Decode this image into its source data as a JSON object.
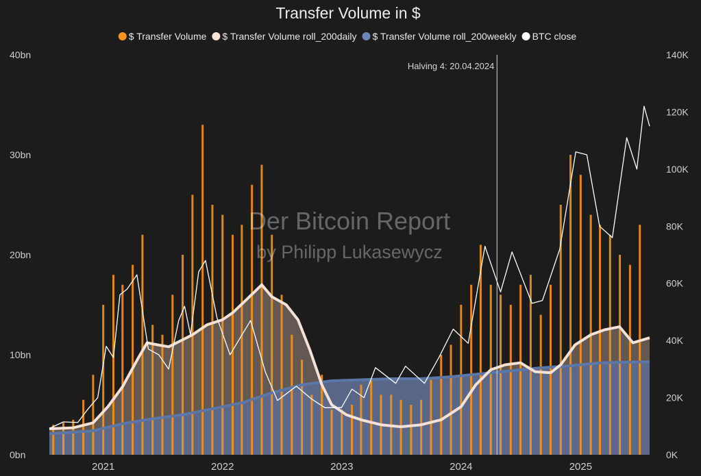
{
  "chart_data": {
    "type": "line",
    "title": "Transfer Volume in $",
    "xlabel": "",
    "ylabel_left": "",
    "ylabel_right": "",
    "background": "#1c1c1c",
    "watermark": {
      "line1": "Der Bitcoin Report",
      "line2": "by Philipp Lukasewycz"
    },
    "x_range": [
      "2020-07-20",
      "2025-07-31"
    ],
    "x_ticks": [
      {
        "date": "2021-01-01",
        "label": "2021"
      },
      {
        "date": "2022-01-01",
        "label": "2022"
      },
      {
        "date": "2023-01-01",
        "label": "2023"
      },
      {
        "date": "2024-01-01",
        "label": "2024"
      },
      {
        "date": "2025-01-01",
        "label": "2025"
      }
    ],
    "y_left": {
      "min": 0,
      "max": 40,
      "unit": "bn",
      "ticks": [
        {
          "v": 0,
          "label": "0bn"
        },
        {
          "v": 10,
          "label": "10bn"
        },
        {
          "v": 20,
          "label": "20bn"
        },
        {
          "v": 30,
          "label": "30bn"
        },
        {
          "v": 40,
          "label": "40bn"
        }
      ]
    },
    "y_right": {
      "min": 0,
      "max": 140000,
      "ticks": [
        {
          "v": 0,
          "label": "0K"
        },
        {
          "v": 20000,
          "label": "20K"
        },
        {
          "v": 40000,
          "label": "40K"
        },
        {
          "v": 60000,
          "label": "60K"
        },
        {
          "v": 80000,
          "label": "80K"
        },
        {
          "v": 100000,
          "label": "100K"
        },
        {
          "v": 120000,
          "label": "120K"
        },
        {
          "v": 140000,
          "label": "140K"
        }
      ]
    },
    "annotations": [
      {
        "date": "2024-04-20",
        "label": "Halving 4: 20.04.2024"
      }
    ],
    "legend_placement": "top-center",
    "series": [
      {
        "name": "$ Transfer Volume",
        "axis": "left",
        "color": "#f7931a",
        "style": "bars",
        "points": [
          [
            "2020-08-01",
            3.0
          ],
          [
            "2020-09-01",
            3.2
          ],
          [
            "2020-10-01",
            3.5
          ],
          [
            "2020-11-01",
            5.5
          ],
          [
            "2020-12-01",
            8.0
          ],
          [
            "2021-01-01",
            15.0
          ],
          [
            "2021-02-01",
            18.0
          ],
          [
            "2021-03-01",
            17.0
          ],
          [
            "2021-04-01",
            19.0
          ],
          [
            "2021-05-01",
            22.0
          ],
          [
            "2021-06-01",
            13.0
          ],
          [
            "2021-07-01",
            12.0
          ],
          [
            "2021-08-01",
            16.0
          ],
          [
            "2021-09-01",
            20.0
          ],
          [
            "2021-10-01",
            26.0
          ],
          [
            "2021-11-01",
            33.0
          ],
          [
            "2021-12-01",
            25.0
          ],
          [
            "2022-01-01",
            24.0
          ],
          [
            "2022-02-01",
            22.0
          ],
          [
            "2022-03-01",
            23.0
          ],
          [
            "2022-04-01",
            27.0
          ],
          [
            "2022-05-01",
            29.0
          ],
          [
            "2022-06-01",
            22.0
          ],
          [
            "2022-07-01",
            16.0
          ],
          [
            "2022-08-01",
            12.0
          ],
          [
            "2022-09-01",
            9.5
          ],
          [
            "2022-10-01",
            6.0
          ],
          [
            "2022-11-01",
            8.0
          ],
          [
            "2022-12-01",
            4.5
          ],
          [
            "2023-01-01",
            4.5
          ],
          [
            "2023-02-01",
            5.0
          ],
          [
            "2023-03-01",
            7.0
          ],
          [
            "2023-04-01",
            7.5
          ],
          [
            "2023-05-01",
            6.0
          ],
          [
            "2023-06-01",
            6.0
          ],
          [
            "2023-07-01",
            5.5
          ],
          [
            "2023-08-01",
            5.0
          ],
          [
            "2023-09-01",
            5.5
          ],
          [
            "2023-10-01",
            7.5
          ],
          [
            "2023-11-01",
            10.0
          ],
          [
            "2023-12-01",
            11.0
          ],
          [
            "2024-01-01",
            15.0
          ],
          [
            "2024-02-01",
            17.0
          ],
          [
            "2024-03-01",
            21.0
          ],
          [
            "2024-04-01",
            17.0
          ],
          [
            "2024-05-01",
            16.0
          ],
          [
            "2024-06-01",
            15.0
          ],
          [
            "2024-07-01",
            17.0
          ],
          [
            "2024-08-01",
            18.0
          ],
          [
            "2024-09-01",
            14.0
          ],
          [
            "2024-10-01",
            17.0
          ],
          [
            "2024-11-01",
            25.0
          ],
          [
            "2024-12-01",
            30.0
          ],
          [
            "2025-01-01",
            28.0
          ],
          [
            "2025-02-01",
            24.0
          ],
          [
            "2025-03-01",
            23.0
          ],
          [
            "2025-04-01",
            22.0
          ],
          [
            "2025-05-01",
            20.0
          ],
          [
            "2025-06-01",
            19.0
          ],
          [
            "2025-07-01",
            23.0
          ]
        ]
      },
      {
        "name": "$ Transfer Volume roll_200daily",
        "axis": "left",
        "color": "#f5e1d6",
        "style": "line-fill",
        "points": [
          [
            "2020-07-20",
            2.6
          ],
          [
            "2020-10-01",
            2.7
          ],
          [
            "2020-12-01",
            3.2
          ],
          [
            "2021-01-15",
            4.8
          ],
          [
            "2021-03-01",
            6.8
          ],
          [
            "2021-04-15",
            9.5
          ],
          [
            "2021-05-15",
            11.2
          ],
          [
            "2021-06-15",
            11.0
          ],
          [
            "2021-07-20",
            10.8
          ],
          [
            "2021-08-20",
            11.3
          ],
          [
            "2021-10-01",
            12.0
          ],
          [
            "2021-11-15",
            13.0
          ],
          [
            "2022-01-01",
            13.5
          ],
          [
            "2022-02-01",
            14.2
          ],
          [
            "2022-03-15",
            15.5
          ],
          [
            "2022-05-01",
            17.0
          ],
          [
            "2022-06-01",
            15.8
          ],
          [
            "2022-07-15",
            15.0
          ],
          [
            "2022-08-20",
            13.5
          ],
          [
            "2022-09-25",
            10.5
          ],
          [
            "2022-11-01",
            7.0
          ],
          [
            "2022-12-01",
            5.0
          ],
          [
            "2023-01-15",
            4.0
          ],
          [
            "2023-03-01",
            3.5
          ],
          [
            "2023-05-01",
            3.0
          ],
          [
            "2023-07-01",
            2.8
          ],
          [
            "2023-09-01",
            3.0
          ],
          [
            "2023-11-01",
            3.5
          ],
          [
            "2024-01-01",
            4.8
          ],
          [
            "2024-02-15",
            7.0
          ],
          [
            "2024-04-01",
            8.5
          ],
          [
            "2024-05-15",
            9.0
          ],
          [
            "2024-07-01",
            9.2
          ],
          [
            "2024-08-15",
            8.3
          ],
          [
            "2024-10-01",
            8.2
          ],
          [
            "2024-11-01",
            9.0
          ],
          [
            "2024-12-15",
            11.0
          ],
          [
            "2025-02-01",
            12.0
          ],
          [
            "2025-03-15",
            12.5
          ],
          [
            "2025-04-30",
            12.8
          ],
          [
            "2025-06-10",
            11.2
          ],
          [
            "2025-07-31",
            11.7
          ]
        ]
      },
      {
        "name": "$ Transfer Volume roll_200weekly",
        "axis": "left",
        "color": "#5a77a8",
        "style": "line-fill",
        "points": [
          [
            "2020-07-20",
            2.1
          ],
          [
            "2020-12-01",
            2.4
          ],
          [
            "2021-03-01",
            3.1
          ],
          [
            "2021-06-01",
            3.6
          ],
          [
            "2021-09-01",
            4.0
          ],
          [
            "2021-12-01",
            4.6
          ],
          [
            "2022-03-01",
            5.2
          ],
          [
            "2022-06-01",
            6.2
          ],
          [
            "2022-09-01",
            7.0
          ],
          [
            "2022-12-01",
            7.4
          ],
          [
            "2023-03-01",
            7.5
          ],
          [
            "2023-06-01",
            7.6
          ],
          [
            "2023-09-01",
            7.6
          ],
          [
            "2023-12-01",
            7.8
          ],
          [
            "2024-03-01",
            8.1
          ],
          [
            "2024-06-01",
            8.4
          ],
          [
            "2024-09-01",
            8.7
          ],
          [
            "2024-12-01",
            8.9
          ],
          [
            "2025-03-01",
            9.2
          ],
          [
            "2025-07-31",
            9.3
          ]
        ]
      },
      {
        "name": "BTC close",
        "axis": "right",
        "color": "#ffffff",
        "style": "line",
        "points": [
          [
            "2020-07-20",
            9200
          ],
          [
            "2020-09-01",
            11500
          ],
          [
            "2020-10-15",
            11300
          ],
          [
            "2020-11-15",
            16000
          ],
          [
            "2020-12-15",
            20000
          ],
          [
            "2021-01-10",
            38000
          ],
          [
            "2021-02-01",
            34000
          ],
          [
            "2021-02-21",
            56000
          ],
          [
            "2021-03-15",
            58000
          ],
          [
            "2021-04-14",
            63000
          ],
          [
            "2021-05-19",
            37000
          ],
          [
            "2021-06-20",
            35000
          ],
          [
            "2021-07-20",
            30000
          ],
          [
            "2021-08-20",
            47000
          ],
          [
            "2021-09-07",
            52000
          ],
          [
            "2021-09-25",
            42000
          ],
          [
            "2021-10-20",
            64000
          ],
          [
            "2021-11-10",
            68000
          ],
          [
            "2021-12-15",
            48000
          ],
          [
            "2022-01-24",
            35000
          ],
          [
            "2022-03-28",
            47000
          ],
          [
            "2022-05-12",
            29000
          ],
          [
            "2022-06-18",
            19000
          ],
          [
            "2022-08-15",
            24000
          ],
          [
            "2022-10-01",
            19500
          ],
          [
            "2022-11-10",
            16500
          ],
          [
            "2022-12-31",
            16500
          ],
          [
            "2023-02-01",
            23000
          ],
          [
            "2023-03-10",
            20000
          ],
          [
            "2023-04-14",
            30500
          ],
          [
            "2023-06-15",
            25000
          ],
          [
            "2023-07-15",
            31000
          ],
          [
            "2023-09-11",
            25000
          ],
          [
            "2023-10-25",
            34000
          ],
          [
            "2023-12-08",
            44000
          ],
          [
            "2024-01-23",
            39000
          ],
          [
            "2024-03-14",
            73000
          ],
          [
            "2024-05-01",
            57000
          ],
          [
            "2024-06-05",
            71000
          ],
          [
            "2024-08-05",
            53000
          ],
          [
            "2024-09-06",
            54000
          ],
          [
            "2024-10-29",
            72000
          ],
          [
            "2024-12-17",
            106000
          ],
          [
            "2025-01-20",
            105000
          ],
          [
            "2025-02-28",
            80000
          ],
          [
            "2025-04-08",
            76000
          ],
          [
            "2025-05-22",
            111000
          ],
          [
            "2025-06-22",
            100000
          ],
          [
            "2025-07-14",
            122000
          ],
          [
            "2025-07-31",
            115000
          ]
        ]
      }
    ]
  }
}
